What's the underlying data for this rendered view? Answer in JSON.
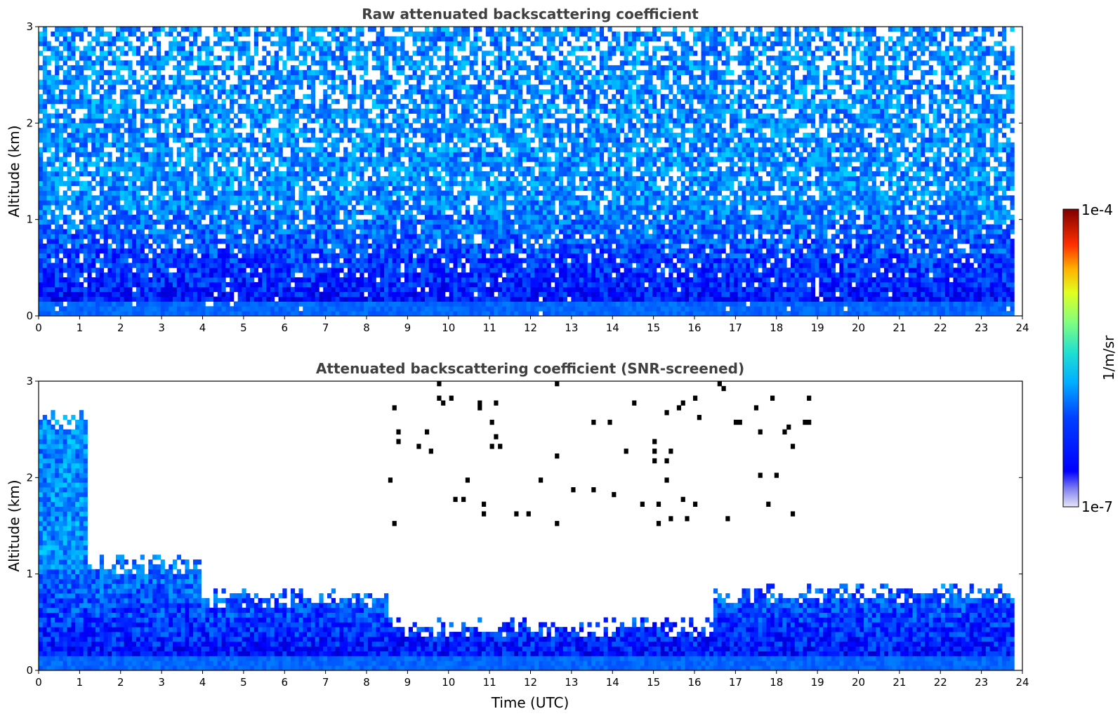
{
  "chart_data": [
    {
      "type": "heatmap",
      "title": "Raw attenuated backscattering coefficient",
      "xlabel": "",
      "ylabel": "Altitude (km)",
      "xlim": [
        0,
        24
      ],
      "ylim": [
        0,
        3
      ],
      "xticks": [
        0,
        1,
        2,
        3,
        4,
        5,
        6,
        7,
        8,
        9,
        10,
        11,
        12,
        13,
        14,
        15,
        16,
        17,
        18,
        19,
        20,
        21,
        22,
        23,
        24
      ],
      "yticks": [
        0,
        1,
        2,
        3
      ],
      "screened": false
    },
    {
      "type": "heatmap",
      "title": "Attenuated backscattering coefficient (SNR-screened)",
      "xlabel": "Time (UTC)",
      "ylabel": "Altitude (km)",
      "xlim": [
        0,
        24
      ],
      "ylim": [
        0,
        3
      ],
      "xticks": [
        0,
        1,
        2,
        3,
        4,
        5,
        6,
        7,
        8,
        9,
        10,
        11,
        12,
        13,
        14,
        15,
        16,
        17,
        18,
        19,
        20,
        21,
        22,
        23,
        24
      ],
      "yticks": [
        0,
        1,
        2,
        3
      ],
      "screened": true
    }
  ],
  "colorbar": {
    "label": "1/m/sr",
    "max_label": "1e-4",
    "min_label": "1e-7",
    "scale": "log",
    "colormap": "jet"
  }
}
